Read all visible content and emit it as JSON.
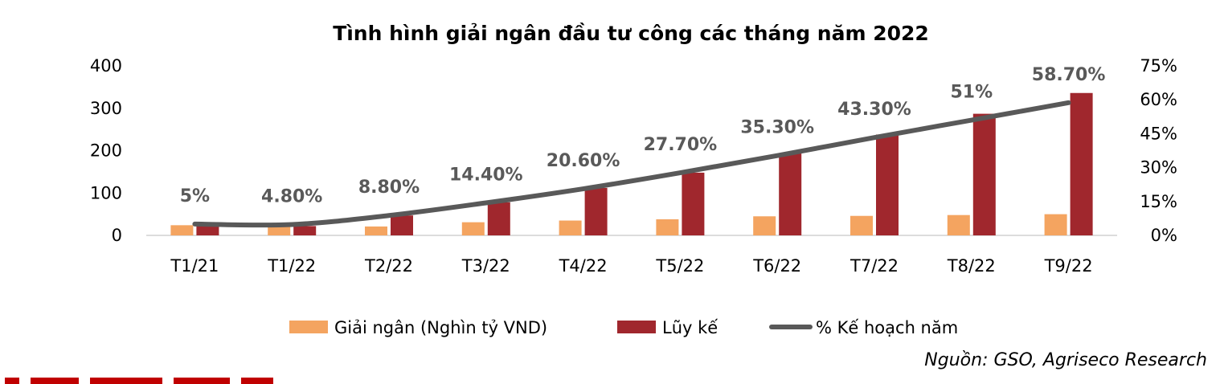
{
  "chart_data": {
    "type": "bar",
    "title": "Tình hình giải ngân đầu tư công các tháng năm 2022",
    "categories": [
      "T1/21",
      "T1/22",
      "T2/22",
      "T3/22",
      "T4/22",
      "T5/22",
      "T6/22",
      "T7/22",
      "T8/22",
      "T9/22"
    ],
    "series": [
      {
        "name": "Giải ngân (Nghìn tỷ VND)",
        "type": "bar",
        "axis": "left",
        "color": "#f4a460",
        "values": [
          24,
          22,
          21,
          31,
          35,
          38,
          45,
          46,
          48,
          50
        ]
      },
      {
        "name": "Lũy kế",
        "type": "bar",
        "axis": "left",
        "color": "#a0272d",
        "values": [
          22,
          22,
          47,
          78,
          112,
          148,
          194,
          238,
          287,
          336
        ]
      },
      {
        "name": "% Kế hoạch năm",
        "type": "line",
        "axis": "right",
        "color": "#595959",
        "values": [
          5,
          4.8,
          8.8,
          14.4,
          20.6,
          27.7,
          35.3,
          43.3,
          51,
          58.7
        ],
        "labels": [
          "5%",
          "4.80%",
          "8.80%",
          "14.40%",
          "20.60%",
          "27.70%",
          "35.30%",
          "43.30%",
          "51%",
          "58.70%"
        ]
      }
    ],
    "y_left": {
      "ylim": [
        0,
        400
      ],
      "ticks": [
        "0",
        "100",
        "200",
        "300",
        "400"
      ]
    },
    "y_right": {
      "ylim": [
        0,
        75
      ],
      "ticks": [
        "0%",
        "15%",
        "30%",
        "45%",
        "60%",
        "75%"
      ]
    },
    "grid": false,
    "legend_position": "bottom"
  },
  "source": "Nguồn: GSO, Agriseco Research"
}
